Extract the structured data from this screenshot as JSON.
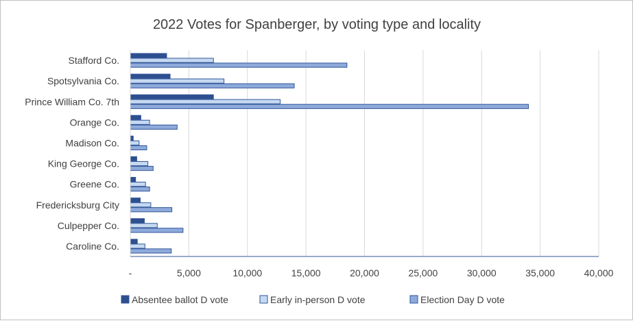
{
  "chart_data": {
    "type": "bar",
    "orientation": "horizontal",
    "title": "2022 Votes for Spanberger, by voting type and locality",
    "xlabel": "",
    "ylabel": "",
    "xlim": [
      0,
      40000
    ],
    "x_ticks": [
      0,
      5000,
      10000,
      15000,
      20000,
      25000,
      30000,
      35000,
      40000
    ],
    "x_tick_labels": [
      "-",
      "5,000",
      "10,000",
      "15,000",
      "20,000",
      "25,000",
      "30,000",
      "35,000",
      "40,000"
    ],
    "grid": "vertical",
    "legend_position": "bottom",
    "categories": [
      "Stafford Co.",
      "Spotsylvania Co.",
      "Prince William Co. 7th",
      "Orange Co.",
      "Madison Co.",
      "King George Co.",
      "Greene Co.",
      "Fredericksburg City",
      "Culpepper Co.",
      "Caroline Co."
    ],
    "series": [
      {
        "name": "Absentee ballot D vote",
        "color": "#2e4f8f",
        "values": [
          3100,
          3400,
          7100,
          900,
          250,
          550,
          450,
          850,
          1200,
          600
        ]
      },
      {
        "name": "Early in-person D vote",
        "color": "#c6d9f1",
        "values": [
          7100,
          8000,
          12800,
          1650,
          750,
          1500,
          1300,
          1750,
          2300,
          1250
        ]
      },
      {
        "name": "Election Day D vote",
        "color": "#8eaadb",
        "values": [
          18500,
          14000,
          34000,
          4000,
          1400,
          1950,
          1650,
          3550,
          4500,
          3500
        ]
      }
    ]
  }
}
